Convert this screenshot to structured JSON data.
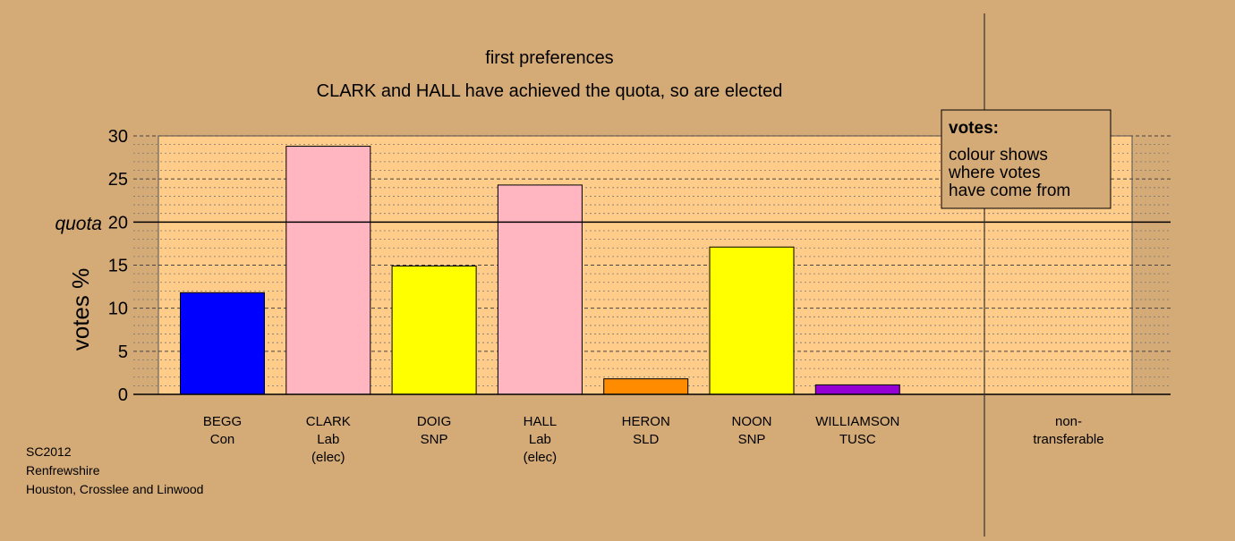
{
  "chart_data": {
    "type": "bar",
    "title": "first preferences",
    "subtitle": "CLARK and HALL have achieved the quota, so are elected",
    "ylabel": "votes %",
    "ylim": [
      0,
      30
    ],
    "yticks": [
      0,
      5,
      10,
      15,
      20,
      25,
      30
    ],
    "quota": 20,
    "quota_label": "quota",
    "categories": [
      {
        "name": "BEGG",
        "party": "Con",
        "note": ""
      },
      {
        "name": "CLARK",
        "party": "Lab",
        "note": "(elec)"
      },
      {
        "name": "DOIG",
        "party": "SNP",
        "note": ""
      },
      {
        "name": "HALL",
        "party": "Lab",
        "note": "(elec)"
      },
      {
        "name": "HERON",
        "party": "SLD",
        "note": ""
      },
      {
        "name": "NOON",
        "party": "SNP",
        "note": ""
      },
      {
        "name": "WILLIAMSON",
        "party": "TUSC",
        "note": ""
      }
    ],
    "values": [
      11.8,
      28.8,
      14.9,
      24.3,
      1.8,
      17.1,
      1.1
    ],
    "colors": [
      "#0000ff",
      "#ffb6c1",
      "#ffff00",
      "#ffb6c1",
      "#ff8c00",
      "#ffff00",
      "#9400d3"
    ],
    "nontransferable": {
      "label_line1": "non-",
      "label_line2": "transferable",
      "value": 0
    },
    "legend": {
      "title": "votes:",
      "lines": [
        "colour shows",
        "where votes",
        "have come from"
      ],
      "position": "top-right"
    },
    "grid": true
  },
  "footer": {
    "line1": "SC2012",
    "line2": "Renfrewshire",
    "line3": "Houston, Crosslee and Linwood"
  },
  "colors": {
    "background": "#d4aa77",
    "plot_background": "#ffcc8a"
  }
}
